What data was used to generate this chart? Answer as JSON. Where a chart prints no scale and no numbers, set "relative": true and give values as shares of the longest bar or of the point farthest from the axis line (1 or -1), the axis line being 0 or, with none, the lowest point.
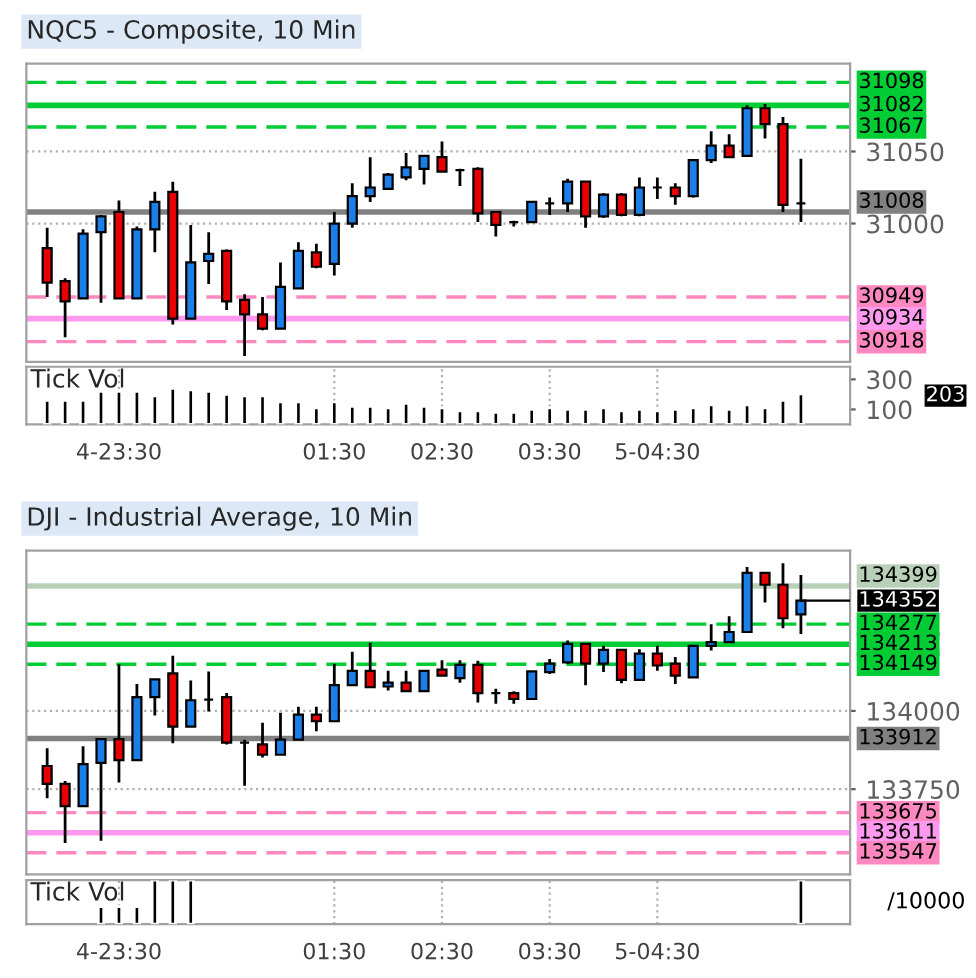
{
  "chart_data": [
    {
      "type": "candlestick",
      "title": "NQC5 - Composite, 10 Min",
      "x": [
        -1.1667,
        -1,
        -0.8333,
        -0.6667,
        -0.5,
        -0.3333,
        -0.1667,
        0,
        0.1667,
        0.3333,
        0.5,
        0.6667,
        0.8333,
        1,
        1.1667,
        1.3333,
        1.5,
        1.6667,
        1.8333,
        2,
        2.1667,
        2.3333,
        2.5,
        2.6667,
        2.8333,
        3,
        3.1667,
        3.3333,
        3.5,
        3.6667,
        3.8333,
        4,
        4.1667,
        4.3333,
        4.5,
        4.6667,
        4.8333,
        5,
        5.1667,
        5.3333,
        5.5,
        5.6667,
        5.8333
      ],
      "ohlc": [
        [
          30983,
          30997,
          30949,
          30959
        ],
        [
          30960,
          30962,
          30921,
          30946
        ],
        [
          30948,
          30996,
          30948,
          30993
        ],
        [
          30994,
          31006,
          30945,
          31005
        ],
        [
          31008,
          31016,
          30948,
          30948
        ],
        [
          30948,
          30998,
          30948,
          30996
        ],
        [
          30996,
          31022,
          30980,
          31015
        ],
        [
          31022,
          31029,
          30930,
          30934
        ],
        [
          30934,
          30999,
          30934,
          30973
        ],
        [
          30974,
          30994,
          30958,
          30979
        ],
        [
          30981,
          30982,
          30940,
          30946
        ],
        [
          30947,
          30951,
          30908,
          30937
        ],
        [
          30937,
          30949,
          30926,
          30927
        ],
        [
          30927,
          30973,
          30927,
          30956
        ],
        [
          30955,
          30987,
          30955,
          30981
        ],
        [
          30980,
          30986,
          30969,
          30970
        ],
        [
          30972,
          31008,
          30964,
          31000
        ],
        [
          31000,
          31028,
          30997,
          31019
        ],
        [
          31019,
          31046,
          31015,
          31025
        ],
        [
          31024,
          31035,
          31024,
          31034
        ],
        [
          31032,
          31049,
          31030,
          31039
        ],
        [
          31038,
          31047,
          31027,
          31047
        ],
        [
          31046,
          31057,
          31036,
          31036
        ],
        [
          31037,
          31038,
          31026,
          31037
        ],
        [
          31038,
          31039,
          31001,
          31007
        ],
        [
          31008,
          31008,
          30991,
          30999
        ],
        [
          31001,
          31002,
          30998,
          31001
        ],
        [
          31001,
          31015,
          31001,
          31015
        ],
        [
          31014,
          31018,
          31006,
          31014
        ],
        [
          31014,
          31031,
          31008,
          31029
        ],
        [
          31029,
          31029,
          30997,
          31005
        ],
        [
          31005,
          31021,
          31004,
          31020
        ],
        [
          31020,
          31021,
          31005,
          31006
        ],
        [
          31006,
          31032,
          31005,
          31025
        ],
        [
          31025,
          31032,
          31017,
          31025
        ],
        [
          31025,
          31028,
          31013,
          31019
        ],
        [
          31019,
          31044,
          31018,
          31044
        ],
        [
          31044,
          31064,
          31042,
          31054
        ],
        [
          31054,
          31062,
          31046,
          31046
        ],
        [
          31047,
          31082,
          31047,
          31080
        ],
        [
          31080,
          31083,
          31059,
          31069
        ],
        [
          31069,
          31074,
          31008,
          31013
        ],
        [
          31014,
          31045,
          31001,
          31014
        ]
      ],
      "xlim": [
        -1.36,
        6.29
      ],
      "ylim": [
        30904,
        31111
      ],
      "yticks": [
        31050,
        31000
      ],
      "tick_labels": "y",
      "grid": "y",
      "ref_lines": [
        {
          "axis": "y",
          "value": 31098,
          "label": "31098",
          "color": "#00cc33",
          "line_style": "dashed"
        },
        {
          "axis": "y",
          "value": 31082,
          "label": "31082",
          "color": "#00cc33",
          "line_style": "solid"
        },
        {
          "axis": "y",
          "value": 31067,
          "label": "31067",
          "color": "#00cc33",
          "line_style": "dashed"
        },
        {
          "axis": "y",
          "value": 31008,
          "label": "31008",
          "color": "#808080",
          "line_style": "solid"
        },
        {
          "axis": "y",
          "value": 30949,
          "label": "30949",
          "color": "#ff88c0",
          "line_style": "dashed"
        },
        {
          "axis": "y",
          "value": 30934,
          "label": "30934",
          "color": "#ff99ee",
          "line_style": "solid"
        },
        {
          "axis": "y",
          "value": 30918,
          "label": "30918",
          "color": "#ff88c0",
          "line_style": "dashed"
        }
      ]
    },
    {
      "type": "bar",
      "title": "Tick Vol",
      "x": [
        -1.1667,
        -1,
        -0.8333,
        -0.6667,
        -0.5,
        -0.3333,
        -0.1667,
        0,
        0.1667,
        0.3333,
        0.5,
        0.6667,
        0.8333,
        1,
        1.1667,
        1.3333,
        1.5,
        1.6667,
        1.8333,
        2,
        2.1667,
        2.3333,
        2.5,
        2.6667,
        2.8333,
        3,
        3.1667,
        3.3333,
        3.5,
        3.6667,
        3.8333,
        4,
        4.1667,
        4.3333,
        4.5,
        4.6667,
        4.8333,
        5,
        5.1667,
        5.3333,
        5.5,
        5.6667,
        5.8333
      ],
      "series": [
        {
          "color": "#000000",
          "values": [
            160,
            160,
            160,
            220,
            220,
            220,
            190,
            240,
            230,
            220,
            200,
            190,
            190,
            150,
            150,
            110,
            150,
            120,
            120,
            110,
            140,
            120,
            110,
            90,
            90,
            80,
            80,
            100,
            110,
            100,
            100,
            110,
            90,
            100,
            90,
            100,
            110,
            130,
            100,
            130,
            110,
            160,
            203
          ]
        }
      ],
      "xlim": [
        -1.36,
        6.29
      ],
      "ylim": [
        0,
        384
      ],
      "yticks": [
        300,
        100
      ],
      "xticks": [
        {
          "value": -0.5,
          "label": "4-23:30"
        },
        {
          "value": 1.5,
          "label": "01:30"
        },
        {
          "value": 2.5,
          "label": "02:30"
        },
        {
          "value": 3.5,
          "label": "03:30"
        },
        {
          "value": 4.5,
          "label": "5-04:30"
        }
      ],
      "grid": "x",
      "annotations": [
        "203"
      ]
    },
    {
      "type": "candlestick",
      "title": "DJI - Industrial Average, 10 Min",
      "x": [
        -1.1667,
        -1,
        -0.8333,
        -0.6667,
        -0.5,
        -0.3333,
        -0.1667,
        0,
        0.1667,
        0.3333,
        0.5,
        0.6667,
        0.8333,
        1,
        1.1667,
        1.3333,
        1.5,
        1.6667,
        1.8333,
        2,
        2.1667,
        2.3333,
        2.5,
        2.6667,
        2.8333,
        3,
        3.1667,
        3.3333,
        3.5,
        3.6667,
        3.8333,
        4,
        4.1667,
        4.3333,
        4.5,
        4.6667,
        4.8333,
        5,
        5.1667,
        5.3333,
        5.5,
        5.6667,
        5.8333
      ],
      "ohlc": [
        [
          133824,
          133881,
          133721,
          133767
        ],
        [
          133767,
          133776,
          133578,
          133696
        ],
        [
          133696,
          133887,
          133696,
          133830
        ],
        [
          133834,
          133910,
          133585,
          133910
        ],
        [
          133910,
          134149,
          133771,
          133843
        ],
        [
          133843,
          134086,
          133843,
          134044
        ],
        [
          134044,
          134101,
          133985,
          134101
        ],
        [
          134120,
          134176,
          133897,
          133950
        ],
        [
          133950,
          134097,
          133950,
          134034
        ],
        [
          134036,
          134126,
          133998,
          134036
        ],
        [
          134044,
          134057,
          133893,
          133899
        ],
        [
          133899,
          133908,
          133761,
          133899
        ],
        [
          133893,
          133962,
          133851,
          133860
        ],
        [
          133860,
          133994,
          133860,
          133908
        ],
        [
          133908,
          134013,
          133908,
          133988
        ],
        [
          133988,
          134013,
          133935,
          133967
        ],
        [
          133967,
          134151,
          133967,
          134082
        ],
        [
          134082,
          134189,
          134082,
          134128
        ],
        [
          134128,
          134218,
          134076,
          134076
        ],
        [
          134078,
          134128,
          134065,
          134090
        ],
        [
          134090,
          134128,
          134063,
          134063
        ],
        [
          134063,
          134128,
          134063,
          134128
        ],
        [
          134132,
          134162,
          134113,
          134113
        ],
        [
          134105,
          134162,
          134090,
          134147
        ],
        [
          134147,
          134160,
          134027,
          134057
        ],
        [
          134057,
          134071,
          134023,
          134057
        ],
        [
          134057,
          134063,
          134023,
          134038
        ],
        [
          134038,
          134126,
          134038,
          134126
        ],
        [
          134124,
          134166,
          134118,
          134151
        ],
        [
          134155,
          134225,
          134151,
          134214
        ],
        [
          134214,
          134214,
          134082,
          134151
        ],
        [
          134151,
          134208,
          134124,
          134195
        ],
        [
          134195,
          134195,
          134088,
          134099
        ],
        [
          134099,
          134197,
          134099,
          134183
        ],
        [
          134183,
          134208,
          134128,
          134145
        ],
        [
          134151,
          134172,
          134086,
          134113
        ],
        [
          134107,
          134208,
          134107,
          134208
        ],
        [
          134208,
          134277,
          134193,
          134220
        ],
        [
          134220,
          134302,
          134220,
          134252
        ],
        [
          134252,
          134460,
          134252,
          134441
        ],
        [
          134441,
          134441,
          134346,
          134403
        ],
        [
          134403,
          134472,
          134264,
          134296
        ],
        [
          134308,
          134434,
          134246,
          134352
        ]
      ],
      "xlim": [
        -1.36,
        6.29
      ],
      "ylim": [
        133478,
        134512
      ],
      "yticks": [
        134000,
        133750
      ],
      "tick_labels": "y",
      "grid": "y",
      "annotations": [
        {
          "text": "134352",
          "x": 5.8333,
          "y": 134352
        }
      ],
      "ref_lines": [
        {
          "axis": "y",
          "value": 134399,
          "label": "134399",
          "color": "#b8d0b8",
          "line_style": "solid"
        },
        {
          "axis": "y",
          "value": 134277,
          "label": "134277",
          "color": "#00cc33",
          "line_style": "dashed"
        },
        {
          "axis": "y",
          "value": 134213,
          "label": "134213",
          "color": "#00cc33",
          "line_style": "solid"
        },
        {
          "axis": "y",
          "value": 134149,
          "label": "134149",
          "color": "#00cc33",
          "line_style": "dashed"
        },
        {
          "axis": "y",
          "value": 133912,
          "label": "133912",
          "color": "#808080",
          "line_style": "solid"
        },
        {
          "axis": "y",
          "value": 133675,
          "label": "133675",
          "color": "#ff88c0",
          "line_style": "dashed"
        },
        {
          "axis": "y",
          "value": 133611,
          "label": "133611",
          "color": "#ff99ee",
          "line_style": "solid"
        },
        {
          "axis": "y",
          "value": 133547,
          "label": "133547",
          "color": "#ff88c0",
          "line_style": "dashed"
        }
      ]
    },
    {
      "type": "bar",
      "title": "Tick Vol",
      "relative": true,
      "x": [
        -0.6667,
        -0.5,
        -0.3333,
        -0.1667,
        0,
        0.1667,
        5.8333
      ],
      "series": [
        {
          "color": "#000000",
          "values": [
            0.4,
            0.4,
            0.4,
            1,
            1,
            1,
            1
          ]
        }
      ],
      "xlim": [
        -1.36,
        6.29
      ],
      "xticks": [
        {
          "value": -0.5,
          "label": "4-23:30"
        },
        {
          "value": 1.5,
          "label": "01:30"
        },
        {
          "value": 2.5,
          "label": "02:30"
        },
        {
          "value": 3.5,
          "label": "03:30"
        },
        {
          "value": 4.5,
          "label": "5-04:30"
        }
      ],
      "tick_labels": "x",
      "grid": "x",
      "annotations": [
        "/10000"
      ]
    }
  ]
}
